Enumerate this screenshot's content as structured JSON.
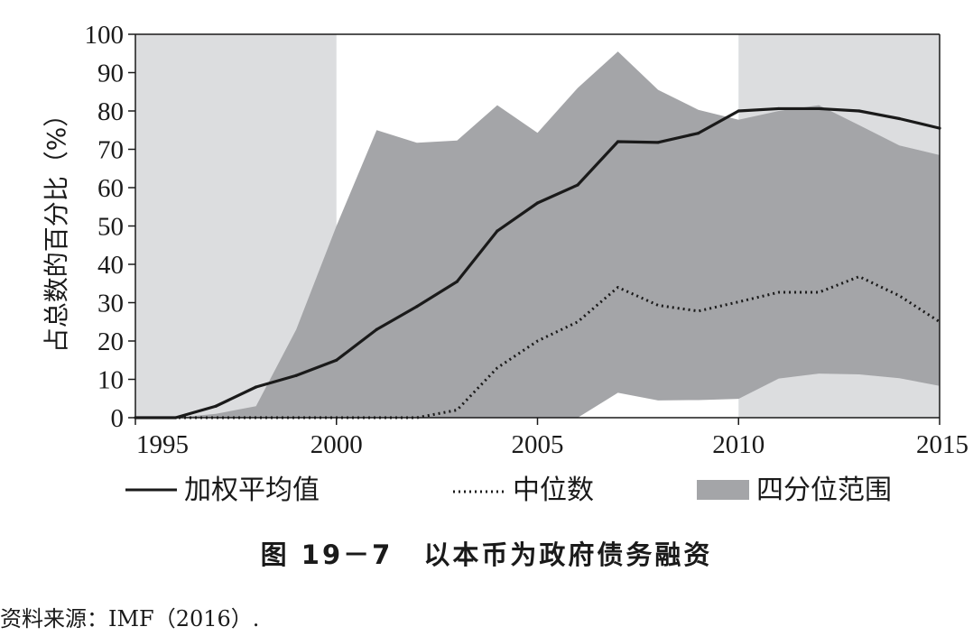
{
  "chart_data": {
    "type": "area",
    "ylabel": "占总数的百分比（%）",
    "xlabel": "",
    "xlim": [
      1995,
      2015
    ],
    "ylim": [
      0,
      100
    ],
    "x_ticks": [
      1995,
      2000,
      2005,
      2010,
      2015
    ],
    "y_ticks": [
      0,
      10,
      20,
      30,
      40,
      50,
      60,
      70,
      80,
      90,
      100
    ],
    "x": [
      1995,
      1996,
      1997,
      1998,
      1999,
      2000,
      2001,
      2002,
      2003,
      2004,
      2005,
      2006,
      2007,
      2008,
      2009,
      2010,
      2011,
      2012,
      2013,
      2014,
      2015
    ],
    "shaded_periods": [
      {
        "start": 1995,
        "end": 2000
      },
      {
        "start": 2010,
        "end": 2015
      }
    ],
    "series": [
      {
        "name": "加权平均值",
        "style": "solid",
        "values": [
          0,
          0,
          3,
          8,
          11,
          15,
          23,
          29,
          35.5,
          48.7,
          56,
          60.7,
          72,
          71.8,
          74.2,
          80,
          80.6,
          80.6,
          80,
          78,
          75.5
        ]
      },
      {
        "name": "中位数",
        "style": "dotted",
        "values": [
          0,
          0,
          0,
          0,
          0,
          0,
          0,
          0,
          2,
          13,
          20,
          25,
          34,
          29.3,
          27.8,
          30.2,
          32.7,
          32.7,
          36.8,
          31.8,
          25
        ]
      },
      {
        "name": "四分位范围",
        "style": "band",
        "upper": [
          0,
          0,
          1,
          3,
          23,
          50,
          75,
          71.7,
          72.3,
          81.5,
          74.3,
          86,
          95.5,
          85.5,
          80.3,
          77.7,
          80,
          81.5,
          76.3,
          71,
          68.5
        ],
        "lower": [
          0,
          0,
          0,
          0,
          0,
          0,
          0,
          0,
          0,
          0,
          0,
          0,
          6.5,
          4.5,
          4.6,
          4.9,
          10.2,
          11.5,
          11.3,
          10.3,
          8.3
        ]
      }
    ],
    "colors": {
      "band": "#a4a5a8",
      "period_shade": "#dcdddf",
      "line": "#1a1a1a"
    }
  },
  "caption": {
    "label": "图 19－7",
    "title": "以本币为政府债务融资"
  },
  "source": "资料来源：IMF（2016）."
}
